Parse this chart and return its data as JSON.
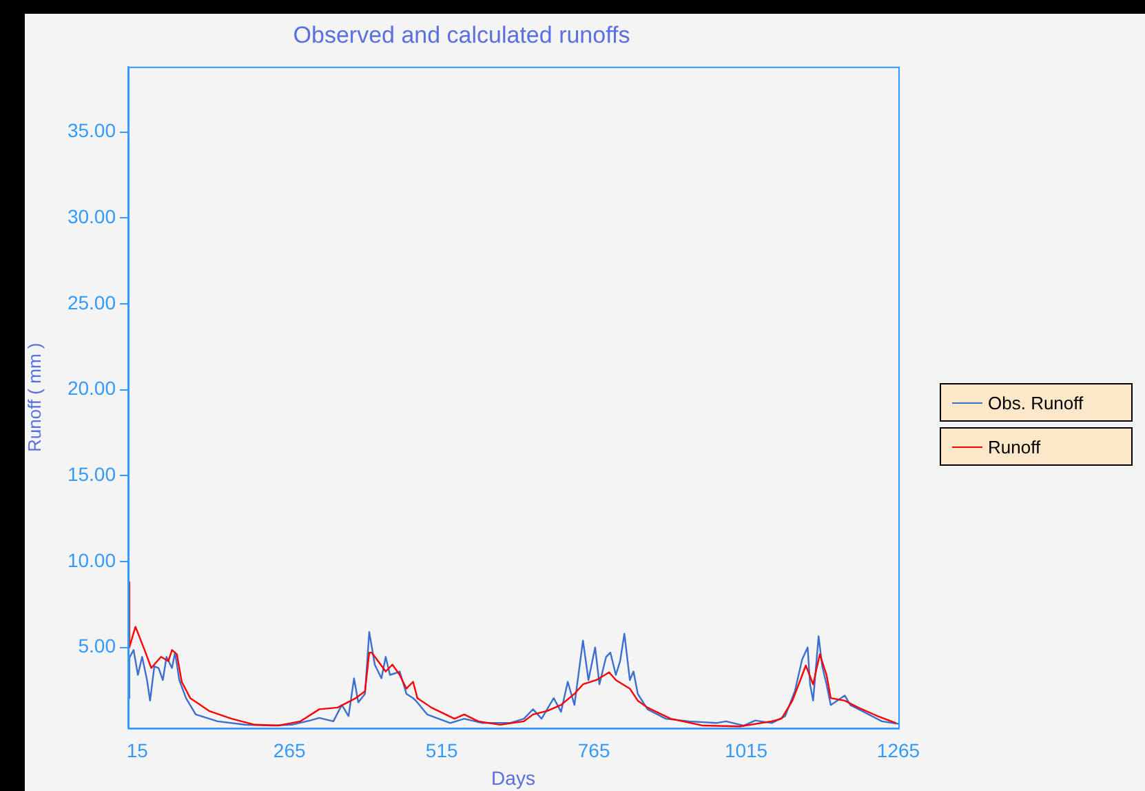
{
  "chart_data": {
    "type": "line",
    "title": "Observed and calculated runoffs",
    "xlabel": "Days",
    "ylabel": "Runoff ( mm )",
    "xlim": [
      0,
      1265
    ],
    "ylim": [
      0.3,
      38.8
    ],
    "xticks": [
      15,
      265,
      515,
      765,
      1015,
      1265
    ],
    "yticks": [
      {
        "value": 5,
        "label": "5.00"
      },
      {
        "value": 10,
        "label": "10.00"
      },
      {
        "value": 15,
        "label": "15.00"
      },
      {
        "value": 20,
        "label": "20.00"
      },
      {
        "value": 25,
        "label": "25.00"
      },
      {
        "value": 30,
        "label": "30.00"
      },
      {
        "value": 35,
        "label": "35.00"
      }
    ],
    "grid": false,
    "legend": "right",
    "marker": "none",
    "line_style": "solid",
    "series": [
      {
        "name": "Obs. Runoff",
        "color": "#3a6fd0",
        "x": [
          1,
          2,
          9,
          16,
          23,
          31,
          36,
          43,
          50,
          57,
          63,
          72,
          77,
          84,
          95,
          111,
          147,
          192,
          238,
          269,
          299,
          314,
          337,
          351,
          362,
          371,
          378,
          389,
          396,
          405,
          416,
          423,
          430,
          439,
          446,
          457,
          468,
          475,
          491,
          529,
          552,
          582,
          627,
          650,
          665,
          679,
          699,
          711,
          722,
          733,
          747,
          756,
          767,
          774,
          785,
          792,
          801,
          808,
          815,
          824,
          830,
          837,
          853,
          883,
          921,
          966,
          982,
          1011,
          1030,
          1057,
          1079,
          1095,
          1107,
          1116,
          1120,
          1125,
          1134,
          1140,
          1147,
          1154,
          1177,
          1186,
          1208,
          1238,
          1265
        ],
        "values": [
          2.05,
          4.4,
          4.85,
          3.4,
          4.45,
          3.1,
          1.9,
          3.9,
          3.8,
          3.1,
          4.45,
          3.8,
          4.7,
          3.1,
          2.05,
          1.1,
          0.7,
          0.5,
          0.45,
          0.5,
          0.75,
          0.9,
          0.7,
          1.65,
          1.0,
          3.2,
          1.8,
          2.3,
          5.9,
          4.0,
          3.2,
          4.45,
          3.4,
          3.5,
          3.6,
          2.3,
          2.05,
          1.8,
          1.1,
          0.6,
          0.85,
          0.6,
          0.6,
          0.85,
          1.4,
          0.85,
          2.05,
          1.25,
          3.0,
          1.65,
          5.4,
          3.1,
          5.0,
          2.85,
          4.45,
          4.7,
          3.4,
          4.2,
          5.8,
          3.1,
          3.6,
          2.3,
          1.4,
          0.85,
          0.7,
          0.6,
          0.7,
          0.45,
          0.75,
          0.6,
          1.0,
          2.45,
          4.3,
          5.0,
          2.85,
          1.9,
          5.65,
          3.9,
          2.85,
          1.65,
          2.2,
          1.65,
          1.25,
          0.7,
          0.55
        ]
      },
      {
        "name": "Runoff",
        "color": "#ff0000",
        "x": [
          1,
          2,
          12,
          27,
          38,
          54,
          66,
          72,
          80,
          88,
          102,
          133,
          170,
          208,
          246,
          283,
          314,
          344,
          374,
          389,
          396,
          400,
          423,
          434,
          446,
          457,
          468,
          475,
          498,
          536,
          552,
          575,
          611,
          650,
          665,
          688,
          711,
          733,
          747,
          769,
          790,
          801,
          824,
          837,
          853,
          891,
          944,
          1005,
          1057,
          1073,
          1091,
          1104,
          1113,
          1125,
          1136,
          1147,
          1154,
          1177,
          1199,
          1231,
          1261
        ],
        "values": [
          8.8,
          5.0,
          6.2,
          4.85,
          3.8,
          4.45,
          4.2,
          4.85,
          4.6,
          3.0,
          2.05,
          1.3,
          0.85,
          0.5,
          0.45,
          0.7,
          1.4,
          1.5,
          2.05,
          2.45,
          4.7,
          4.7,
          3.6,
          4.0,
          3.4,
          2.6,
          3.0,
          2.05,
          1.5,
          0.85,
          1.1,
          0.7,
          0.5,
          0.7,
          1.1,
          1.3,
          1.65,
          2.3,
          2.85,
          3.1,
          3.55,
          3.1,
          2.6,
          1.9,
          1.5,
          0.85,
          0.45,
          0.4,
          0.7,
          0.85,
          1.9,
          3.1,
          3.95,
          2.85,
          4.6,
          3.4,
          2.05,
          1.9,
          1.5,
          1.0,
          0.6
        ]
      }
    ]
  }
}
